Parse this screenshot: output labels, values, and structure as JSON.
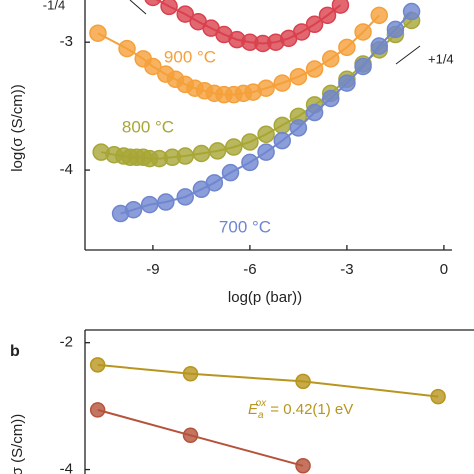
{
  "chart_data": [
    {
      "type": "line",
      "xlabel": "log(p (bar))",
      "ylabel": "log(σ (S/cm))",
      "xlim": [
        -11.1,
        0.25
      ],
      "ylim": [
        -4.625,
        -2.67
      ],
      "xticks": [
        -9,
        -6,
        -3,
        0
      ],
      "yticks": [
        -3,
        -4
      ],
      "annotations": [
        "-1/4",
        "+1/4"
      ],
      "series": [
        {
          "color": "#d9414e",
          "x": [
            -9.0,
            -8.5,
            -8.0,
            -7.6,
            -7.2,
            -6.8,
            -6.4,
            -6.0,
            -5.6,
            -5.2,
            -4.8,
            -4.4,
            -4.0,
            -3.6,
            -3.2
          ],
          "values": [
            -2.65,
            -2.72,
            -2.78,
            -2.84,
            -2.89,
            -2.94,
            -2.98,
            -3.0,
            -3.01,
            -3.0,
            -2.97,
            -2.92,
            -2.86,
            -2.79,
            -2.71
          ]
        },
        {
          "name": "900 °C",
          "color": "#f5a03a",
          "x": [
            -10.7,
            -9.8,
            -9.3,
            -9.0,
            -8.6,
            -8.3,
            -8.0,
            -7.7,
            -7.4,
            -7.1,
            -6.8,
            -6.5,
            -6.2,
            -5.9,
            -5.5,
            -5.0,
            -4.5,
            -4.0,
            -3.5,
            -3.0,
            -2.5,
            -2.0
          ],
          "values": [
            -2.93,
            -3.05,
            -3.13,
            -3.19,
            -3.25,
            -3.29,
            -3.33,
            -3.36,
            -3.38,
            -3.4,
            -3.41,
            -3.41,
            -3.4,
            -3.39,
            -3.36,
            -3.32,
            -3.27,
            -3.21,
            -3.13,
            -3.04,
            -2.92,
            -2.79
          ]
        },
        {
          "name": "800 °C",
          "color": "#a7a636",
          "x": [
            -10.6,
            -10.2,
            -9.9,
            -9.7,
            -9.5,
            -9.3,
            -9.1,
            -8.8,
            -8.4,
            -8.0,
            -7.5,
            -7.0,
            -6.5,
            -6.0,
            -5.5,
            -5.0,
            -4.5,
            -4.0,
            -3.5,
            -3.0,
            -2.5,
            -2.0,
            -1.5,
            -1.0
          ],
          "values": [
            -3.86,
            -3.88,
            -3.89,
            -3.9,
            -3.9,
            -3.9,
            -3.91,
            -3.91,
            -3.9,
            -3.89,
            -3.87,
            -3.85,
            -3.82,
            -3.78,
            -3.72,
            -3.65,
            -3.58,
            -3.49,
            -3.4,
            -3.29,
            -3.17,
            -3.06,
            -2.94,
            -2.83
          ]
        },
        {
          "name": "700 °C",
          "color": "#6f86cf",
          "x": [
            -10.0,
            -9.6,
            -9.1,
            -8.6,
            -8.0,
            -7.5,
            -7.1,
            -6.6,
            -6.0,
            -5.5,
            -5.0,
            -4.5,
            -4.0,
            -3.5,
            -3.0,
            -2.5,
            -2.0,
            -1.5,
            -1.0
          ],
          "values": [
            -4.34,
            -4.31,
            -4.27,
            -4.25,
            -4.21,
            -4.15,
            -4.1,
            -4.02,
            -3.94,
            -3.86,
            -3.77,
            -3.67,
            -3.55,
            -3.44,
            -3.32,
            -3.19,
            -3.03,
            -2.9,
            -2.76
          ]
        }
      ]
    },
    {
      "type": "line",
      "panel": "b",
      "ylabel": "σ (S/cm))",
      "xlim": [
        0.777,
        1.04
      ],
      "ylim": [
        -4.07,
        -1.8
      ],
      "yticks": [
        -2,
        -4
      ],
      "annotation": {
        "symbol": "E",
        "sub": "a",
        "sup": "ox",
        "text": " = 0.42(1) eV"
      },
      "series": [
        {
          "color": "#b8951e",
          "x": [
            0.786,
            0.852,
            0.932,
            1.028
          ],
          "values": [
            -2.35,
            -2.49,
            -2.61,
            -2.85
          ]
        },
        {
          "color": "#b5533a",
          "x": [
            0.786,
            0.852,
            0.932
          ],
          "values": [
            -3.06,
            -3.46,
            -3.94
          ]
        }
      ]
    }
  ]
}
